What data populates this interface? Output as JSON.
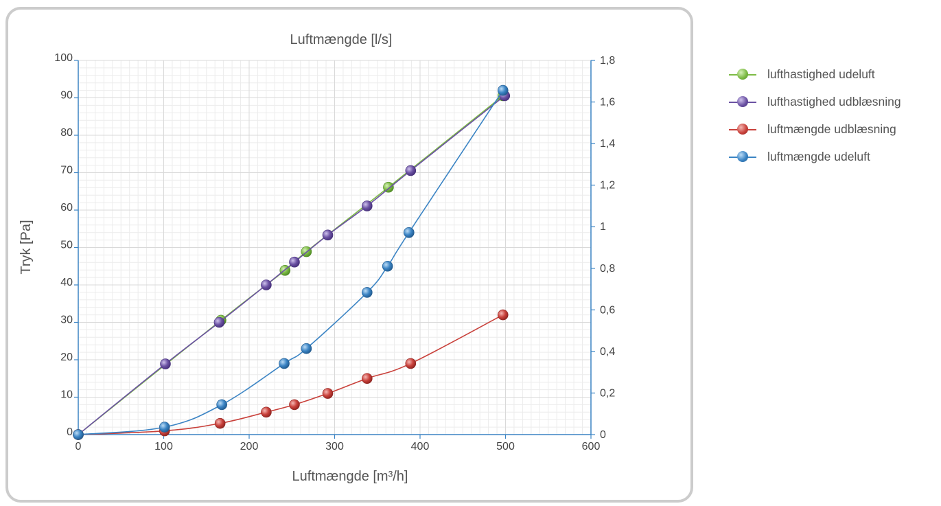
{
  "chart_data": {
    "type": "line",
    "title": "Luftmængde [l/s]",
    "xlabel": "Luftmængde [m³/h]",
    "ylabel": "Tryk [Pa]",
    "xlim": [
      0,
      600
    ],
    "ylim": [
      0,
      100
    ],
    "y2lim": [
      0,
      1.8
    ],
    "x_ticks": [
      "0",
      "100",
      "200",
      "300",
      "400",
      "500",
      "600"
    ],
    "y_ticks": [
      "0",
      "10",
      "20",
      "30",
      "40",
      "50",
      "60",
      "70",
      "80",
      "90",
      "100"
    ],
    "y2_ticks": [
      "0",
      "0,2",
      "0,4",
      "0,6",
      "0,8",
      "1",
      "1,2",
      "1,4",
      "1,6",
      "1,8"
    ],
    "grid": true,
    "legend_position": "right",
    "series": [
      {
        "name": "lufthastighed udeluft",
        "color": "#7dbb45",
        "axis": "y2",
        "x": [
          0,
          167,
          242,
          267,
          363,
          497
        ],
        "y": [
          0,
          0.55,
          0.79,
          0.88,
          1.19,
          1.63
        ]
      },
      {
        "name": "lufthastighed udblæsning",
        "color": "#6b52a3",
        "axis": "y2",
        "x": [
          0,
          102,
          165,
          220,
          253,
          292,
          338,
          389,
          499
        ],
        "y": [
          0,
          0.34,
          0.54,
          0.72,
          0.83,
          0.96,
          1.1,
          1.27,
          1.63
        ]
      },
      {
        "name": "luftmængde udblæsning",
        "color": "#c9413b",
        "axis": "y",
        "x": [
          0,
          101,
          166,
          220,
          253,
          292,
          338,
          389,
          497
        ],
        "y": [
          0,
          1,
          3,
          6,
          8,
          11,
          15,
          19,
          32
        ]
      },
      {
        "name": "luftmængde udeluft",
        "color": "#3b84c4",
        "axis": "y",
        "x": [
          0,
          101,
          168,
          241,
          267,
          338,
          362,
          387,
          497
        ],
        "y": [
          0,
          2,
          8,
          19,
          23,
          38,
          45,
          54,
          92
        ]
      }
    ]
  }
}
